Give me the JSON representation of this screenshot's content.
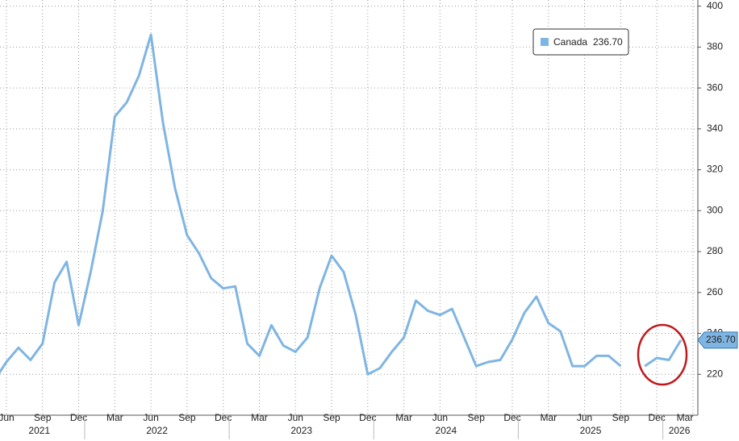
{
  "chart_data": {
    "type": "line",
    "categories": [
      null,
      "Jun",
      null,
      null,
      "Sep",
      null,
      null,
      "Dec",
      null,
      null,
      "Mar",
      null,
      null,
      "Jun",
      null,
      null,
      "Sep",
      null,
      null,
      "Dec",
      null,
      null,
      "Mar",
      null,
      null,
      "Jun",
      null,
      null,
      "Sep",
      null,
      null,
      "Dec",
      null,
      null,
      "Mar",
      null,
      null,
      "Jun",
      null,
      null,
      "Sep",
      null,
      null,
      "Dec",
      null,
      null,
      "Mar",
      null,
      null,
      "Jun",
      null,
      null,
      "Sep",
      null,
      null,
      "Dec",
      null,
      null,
      "Mar"
    ],
    "x_groups": [
      "2021",
      "2022",
      "2023",
      "2024",
      "2025",
      "2026"
    ],
    "series": [
      {
        "name": "Canada",
        "color": "#7fb5e2",
        "values": [
          217,
          226,
          233,
          227,
          235,
          265,
          275,
          244,
          270,
          300,
          346,
          353,
          366,
          386,
          343,
          311,
          288,
          279,
          267,
          262,
          263,
          235,
          229,
          244,
          234,
          231,
          238,
          262,
          278,
          270,
          249,
          220,
          223,
          231,
          238,
          256,
          251,
          249,
          252,
          238,
          224,
          226,
          227,
          237,
          250,
          258,
          245,
          241,
          224,
          224,
          229,
          229,
          224,
          null,
          224,
          228,
          227,
          236.7,
          null
        ],
        "value_labels": [
          null,
          null,
          null,
          null,
          null,
          null,
          null,
          null,
          null,
          null,
          null,
          null,
          null,
          null,
          null,
          null,
          null,
          null,
          null,
          null,
          null,
          null,
          null,
          null,
          null,
          null,
          null,
          null,
          null,
          null,
          null,
          null,
          null,
          null,
          null,
          null,
          null,
          null,
          null,
          null,
          null,
          null,
          null,
          null,
          null,
          null,
          null,
          null,
          null,
          null,
          null,
          null,
          null,
          null,
          null,
          null,
          null,
          "236.70",
          null
        ]
      }
    ],
    "ylim": [
      200,
      403
    ],
    "yticks": [
      220,
      240,
      260,
      280,
      300,
      320,
      340,
      360,
      380,
      400
    ],
    "grid": true
  }
}
